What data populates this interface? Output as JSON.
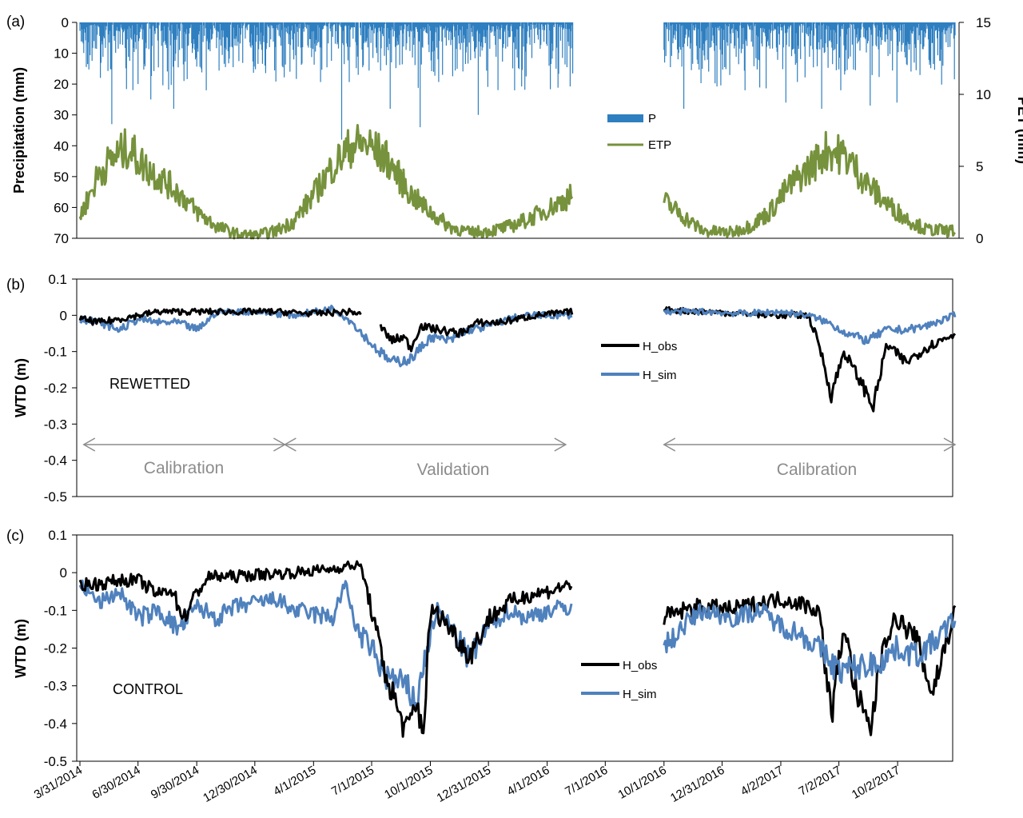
{
  "colors": {
    "precip": "#2e7fc0",
    "etp": "#76923c",
    "obs": "#000000",
    "sim": "#4f81bd",
    "arrow": "#8c8c8c"
  },
  "chart_data": [
    {
      "type": "bar+line",
      "panel_label": "(a)",
      "ylabel_left": "Precipitation (mm)",
      "ylabel_right": "PET (mm)",
      "ylim_left": [
        70,
        0
      ],
      "ylim_right": [
        0,
        15
      ],
      "y_ticks_left": [
        "0",
        "10",
        "20",
        "30",
        "40",
        "50",
        "60",
        "70"
      ],
      "y_ticks_right": [
        "0",
        "5",
        "10",
        "15"
      ],
      "legend": [
        {
          "name": "P"
        },
        {
          "name": "ETP"
        }
      ],
      "data_gap": [
        "2016-05-11",
        "2016-10-01"
      ],
      "precip_peaks": [
        {
          "date": "2014-05-02",
          "mm": 18
        },
        {
          "date": "2014-05-20",
          "mm": 33
        },
        {
          "date": "2014-06-30",
          "mm": 20
        },
        {
          "date": "2014-07-20",
          "mm": 25
        },
        {
          "date": "2014-08-25",
          "mm": 28
        },
        {
          "date": "2014-09-10",
          "mm": 19
        },
        {
          "date": "2014-10-15",
          "mm": 22
        },
        {
          "date": "2015-01-15",
          "mm": 14
        },
        {
          "date": "2015-03-01",
          "mm": 12
        },
        {
          "date": "2015-05-15",
          "mm": 38
        },
        {
          "date": "2015-06-10",
          "mm": 17
        },
        {
          "date": "2015-07-30",
          "mm": 28
        },
        {
          "date": "2015-09-15",
          "mm": 34
        },
        {
          "date": "2015-10-20",
          "mm": 17
        },
        {
          "date": "2015-12-15",
          "mm": 30
        },
        {
          "date": "2016-02-10",
          "mm": 22
        },
        {
          "date": "2016-04-15",
          "mm": 15
        },
        {
          "date": "2016-11-01",
          "mm": 28
        },
        {
          "date": "2017-02-05",
          "mm": 22
        },
        {
          "date": "2017-04-10",
          "mm": 26
        },
        {
          "date": "2017-06-05",
          "mm": 28
        },
        {
          "date": "2017-07-05",
          "mm": 22
        },
        {
          "date": "2017-08-20",
          "mm": 27
        },
        {
          "date": "2017-10-01",
          "mm": 26
        }
      ],
      "etp_series": [
        [
          "2014-03-31",
          1.5
        ],
        [
          "2014-04-30",
          4.5
        ],
        [
          "2014-05-20",
          5.5
        ],
        [
          "2014-06-15",
          6.3
        ],
        [
          "2014-07-10",
          5.0
        ],
        [
          "2014-08-01",
          4.3
        ],
        [
          "2014-09-01",
          3.2
        ],
        [
          "2014-10-01",
          1.8
        ],
        [
          "2014-11-01",
          0.8
        ],
        [
          "2014-12-01",
          0.3
        ],
        [
          "2015-01-01",
          0.2
        ],
        [
          "2015-02-01",
          0.5
        ],
        [
          "2015-03-01",
          1.2
        ],
        [
          "2015-04-01",
          3.0
        ],
        [
          "2015-05-01",
          5.0
        ],
        [
          "2015-06-01",
          6.5
        ],
        [
          "2015-06-25",
          6.5
        ],
        [
          "2015-07-25",
          5.5
        ],
        [
          "2015-09-01",
          3.0
        ],
        [
          "2015-10-01",
          1.8
        ],
        [
          "2015-11-01",
          0.8
        ],
        [
          "2015-12-01",
          0.4
        ],
        [
          "2016-01-01",
          0.5
        ],
        [
          "2016-02-01",
          0.8
        ],
        [
          "2016-03-01",
          1.3
        ],
        [
          "2016-04-01",
          2.0
        ],
        [
          "2016-05-10",
          3.0
        ],
        [
          "2016-10-01",
          2.6
        ],
        [
          "2016-11-01",
          1.5
        ],
        [
          "2016-12-01",
          0.5
        ],
        [
          "2017-01-15",
          0.4
        ],
        [
          "2017-02-15",
          0.9
        ],
        [
          "2017-03-15",
          1.8
        ],
        [
          "2017-04-15",
          3.6
        ],
        [
          "2017-05-15",
          4.8
        ],
        [
          "2017-06-15",
          6.2
        ],
        [
          "2017-07-15",
          5.6
        ],
        [
          "2017-08-15",
          3.8
        ],
        [
          "2017-09-15",
          2.4
        ],
        [
          "2017-10-15",
          1.4
        ],
        [
          "2017-11-15",
          0.6
        ],
        [
          "2017-12-31",
          0.5
        ]
      ]
    },
    {
      "type": "line",
      "panel_label": "(b)",
      "site": "REWETTED",
      "ylabel": "WTD (m)",
      "ylim": [
        -0.5,
        0.1
      ],
      "y_ticks": [
        "0.1",
        "0",
        "-0.1",
        "-0.2",
        "-0.3",
        "-0.4",
        "-0.5"
      ],
      "periods": [
        {
          "label": "Calibration",
          "start": "2014-04-01",
          "end": "2015-02-15"
        },
        {
          "label": "Validation",
          "start": "2015-02-15",
          "end": "2016-04-20"
        },
        {
          "label": "Calibration",
          "start": "2016-10-01",
          "end": "2017-12-31"
        }
      ],
      "series": [
        {
          "name": "H_obs",
          "values": [
            [
              "2014-03-31",
              -0.01
            ],
            [
              "2014-05-01",
              -0.02
            ],
            [
              "2014-07-01",
              0.0
            ],
            [
              "2014-08-01",
              0.01
            ],
            [
              "2014-09-01",
              0.01
            ],
            [
              "2014-10-01",
              0.01
            ],
            [
              "2014-12-01",
              0.01
            ],
            [
              "2015-02-01",
              0.01
            ],
            [
              "2015-04-01",
              0.005
            ],
            [
              "2015-06-01",
              0.01
            ],
            [
              "2015-06-15",
              0.0
            ],
            null,
            [
              "2015-07-15",
              -0.03
            ],
            [
              "2015-08-01",
              -0.07
            ],
            [
              "2015-08-20",
              -0.06
            ],
            [
              "2015-09-01",
              -0.09
            ],
            [
              "2015-09-15",
              -0.03
            ],
            [
              "2015-10-15",
              -0.04
            ],
            [
              "2015-11-15",
              -0.05
            ],
            [
              "2015-12-15",
              -0.02
            ],
            [
              "2016-01-15",
              -0.02
            ],
            [
              "2016-02-15",
              -0.01
            ],
            [
              "2016-03-15",
              0.0
            ],
            [
              "2016-05-10",
              0.01
            ],
            null,
            [
              "2016-10-01",
              0.015
            ],
            [
              "2016-12-01",
              0.01
            ],
            [
              "2017-02-01",
              0.005
            ],
            [
              "2017-04-01",
              0.0
            ],
            [
              "2017-05-15",
              0.0
            ],
            [
              "2017-06-01",
              -0.08
            ],
            [
              "2017-06-20",
              -0.22
            ],
            [
              "2017-07-10",
              -0.1
            ],
            [
              "2017-08-01",
              -0.17
            ],
            [
              "2017-08-25",
              -0.25
            ],
            [
              "2017-09-15",
              -0.08
            ],
            [
              "2017-10-15",
              -0.13
            ],
            [
              "2017-11-15",
              -0.09
            ],
            [
              "2017-12-31",
              -0.05
            ]
          ]
        },
        {
          "name": "H_sim",
          "values": [
            [
              "2014-03-31",
              -0.01
            ],
            [
              "2014-05-01",
              -0.02
            ],
            [
              "2014-06-01",
              -0.04
            ],
            [
              "2014-07-01",
              -0.01
            ],
            [
              "2014-08-01",
              -0.02
            ],
            [
              "2014-09-01",
              -0.02
            ],
            [
              "2014-10-01",
              -0.04
            ],
            [
              "2014-11-01",
              0.01
            ],
            [
              "2015-01-01",
              0.01
            ],
            [
              "2015-03-01",
              0.0
            ],
            [
              "2015-04-01",
              0.01
            ],
            [
              "2015-05-01",
              0.02
            ],
            [
              "2015-06-01",
              -0.02
            ],
            [
              "2015-07-01",
              -0.08
            ],
            [
              "2015-08-01",
              -0.13
            ],
            [
              "2015-09-01",
              -0.12
            ],
            [
              "2015-10-01",
              -0.06
            ],
            [
              "2015-11-01",
              -0.07
            ],
            [
              "2015-12-01",
              -0.04
            ],
            [
              "2016-01-01",
              -0.03
            ],
            [
              "2016-02-01",
              -0.01
            ],
            [
              "2016-03-01",
              0.0
            ],
            [
              "2016-05-10",
              0.0
            ],
            null,
            [
              "2016-10-01",
              0.01
            ],
            [
              "2016-12-01",
              0.01
            ],
            [
              "2017-02-01",
              0.005
            ],
            [
              "2017-04-01",
              0.01
            ],
            [
              "2017-05-15",
              0.0
            ],
            [
              "2017-06-15",
              -0.02
            ],
            [
              "2017-07-15",
              -0.05
            ],
            [
              "2017-08-15",
              -0.07
            ],
            [
              "2017-09-15",
              -0.04
            ],
            [
              "2017-10-15",
              -0.04
            ],
            [
              "2017-11-15",
              -0.03
            ],
            [
              "2017-12-31",
              0.0
            ]
          ]
        }
      ]
    },
    {
      "type": "line",
      "panel_label": "(c)",
      "site": "CONTROL",
      "ylabel": "WTD (m)",
      "ylim": [
        -0.5,
        0.1
      ],
      "y_ticks": [
        "0.1",
        "0",
        "-0.1",
        "-0.2",
        "-0.3",
        "-0.4",
        "-0.5"
      ],
      "x_ticks": [
        "3/31/2014",
        "6/30/2014",
        "9/30/2014",
        "12/30/2014",
        "4/1/2015",
        "7/1/2015",
        "10/1/2015",
        "12/31/2015",
        "4/1/2016",
        "7/1/2016",
        "10/1/2016",
        "12/31/2016",
        "4/2/2017",
        "7/2/2017",
        "10/2/2017"
      ],
      "series": [
        {
          "name": "H_obs",
          "values": [
            [
              "2014-03-31",
              -0.03
            ],
            [
              "2014-05-01",
              -0.03
            ],
            [
              "2014-06-01",
              -0.02
            ],
            [
              "2014-07-01",
              -0.02
            ],
            [
              "2014-08-01",
              -0.06
            ],
            [
              "2014-08-20",
              -0.04
            ],
            [
              "2014-09-10",
              -0.12
            ],
            [
              "2014-10-01",
              -0.05
            ],
            [
              "2014-10-20",
              -0.01
            ],
            [
              "2014-12-01",
              -0.01
            ],
            [
              "2015-01-01",
              -0.005
            ],
            [
              "2015-03-01",
              0.0
            ],
            [
              "2015-04-01",
              0.005
            ],
            [
              "2015-05-01",
              0.01
            ],
            [
              "2015-06-01",
              0.02
            ],
            [
              "2015-06-15",
              0.015
            ],
            [
              "2015-07-01",
              -0.1
            ],
            [
              "2015-07-20",
              -0.25
            ],
            [
              "2015-08-10",
              -0.36
            ],
            [
              "2015-08-25",
              -0.42
            ],
            [
              "2015-09-10",
              -0.35
            ],
            [
              "2015-09-20",
              -0.42
            ],
            [
              "2015-10-01",
              -0.1
            ],
            [
              "2015-10-20",
              -0.12
            ],
            [
              "2015-11-15",
              -0.18
            ],
            [
              "2015-12-01",
              -0.22
            ],
            [
              "2016-01-01",
              -0.12
            ],
            [
              "2016-02-01",
              -0.08
            ],
            [
              "2016-03-01",
              -0.06
            ],
            [
              "2016-04-01",
              -0.05
            ],
            [
              "2016-05-10",
              -0.03
            ],
            null,
            [
              "2016-10-01",
              -0.12
            ],
            [
              "2016-11-01",
              -0.1
            ],
            [
              "2016-12-01",
              -0.09
            ],
            [
              "2017-01-15",
              -0.1
            ],
            [
              "2017-03-01",
              -0.08
            ],
            [
              "2017-04-01",
              -0.07
            ],
            [
              "2017-05-01",
              -0.08
            ],
            [
              "2017-06-01",
              -0.1
            ],
            [
              "2017-06-20",
              -0.38
            ],
            [
              "2017-07-10",
              -0.14
            ],
            [
              "2017-07-30",
              -0.33
            ],
            [
              "2017-08-20",
              -0.42
            ],
            [
              "2017-09-10",
              -0.18
            ],
            [
              "2017-10-01",
              -0.12
            ],
            [
              "2017-11-01",
              -0.18
            ],
            [
              "2017-11-25",
              -0.32
            ],
            [
              "2017-12-31",
              -0.1
            ]
          ]
        },
        {
          "name": "H_sim",
          "values": [
            [
              "2014-03-31",
              -0.03
            ],
            [
              "2014-05-01",
              -0.08
            ],
            [
              "2014-06-01",
              -0.05
            ],
            [
              "2014-07-01",
              -0.12
            ],
            [
              "2014-08-01",
              -0.1
            ],
            [
              "2014-09-01",
              -0.15
            ],
            [
              "2014-10-01",
              -0.09
            ],
            [
              "2014-11-01",
              -0.12
            ],
            [
              "2014-12-01",
              -0.09
            ],
            [
              "2015-01-01",
              -0.08
            ],
            [
              "2015-02-01",
              -0.07
            ],
            [
              "2015-03-01",
              -0.1
            ],
            [
              "2015-04-01",
              -0.11
            ],
            [
              "2015-05-01",
              -0.12
            ],
            [
              "2015-05-20",
              -0.03
            ],
            [
              "2015-06-10",
              -0.16
            ],
            [
              "2015-07-01",
              -0.2
            ],
            [
              "2015-07-20",
              -0.27
            ],
            [
              "2015-08-20",
              -0.3
            ],
            [
              "2015-09-10",
              -0.34
            ],
            [
              "2015-09-20",
              -0.25
            ],
            [
              "2015-10-10",
              -0.1
            ],
            [
              "2015-11-01",
              -0.14
            ],
            [
              "2015-12-01",
              -0.23
            ],
            [
              "2016-01-01",
              -0.14
            ],
            [
              "2016-02-01",
              -0.1
            ],
            [
              "2016-03-01",
              -0.12
            ],
            [
              "2016-04-01",
              -0.1
            ],
            [
              "2016-05-10",
              -0.09
            ],
            null,
            [
              "2016-10-01",
              -0.2
            ],
            [
              "2016-11-01",
              -0.14
            ],
            [
              "2016-12-01",
              -0.1
            ],
            [
              "2017-01-15",
              -0.12
            ],
            [
              "2017-03-01",
              -0.1
            ],
            [
              "2017-04-01",
              -0.14
            ],
            [
              "2017-05-01",
              -0.16
            ],
            [
              "2017-06-01",
              -0.2
            ],
            [
              "2017-07-01",
              -0.26
            ],
            [
              "2017-08-01",
              -0.25
            ],
            [
              "2017-09-01",
              -0.24
            ],
            [
              "2017-10-01",
              -0.2
            ],
            [
              "2017-11-01",
              -0.22
            ],
            [
              "2017-12-01",
              -0.18
            ],
            [
              "2017-12-31",
              -0.12
            ]
          ]
        }
      ]
    }
  ]
}
